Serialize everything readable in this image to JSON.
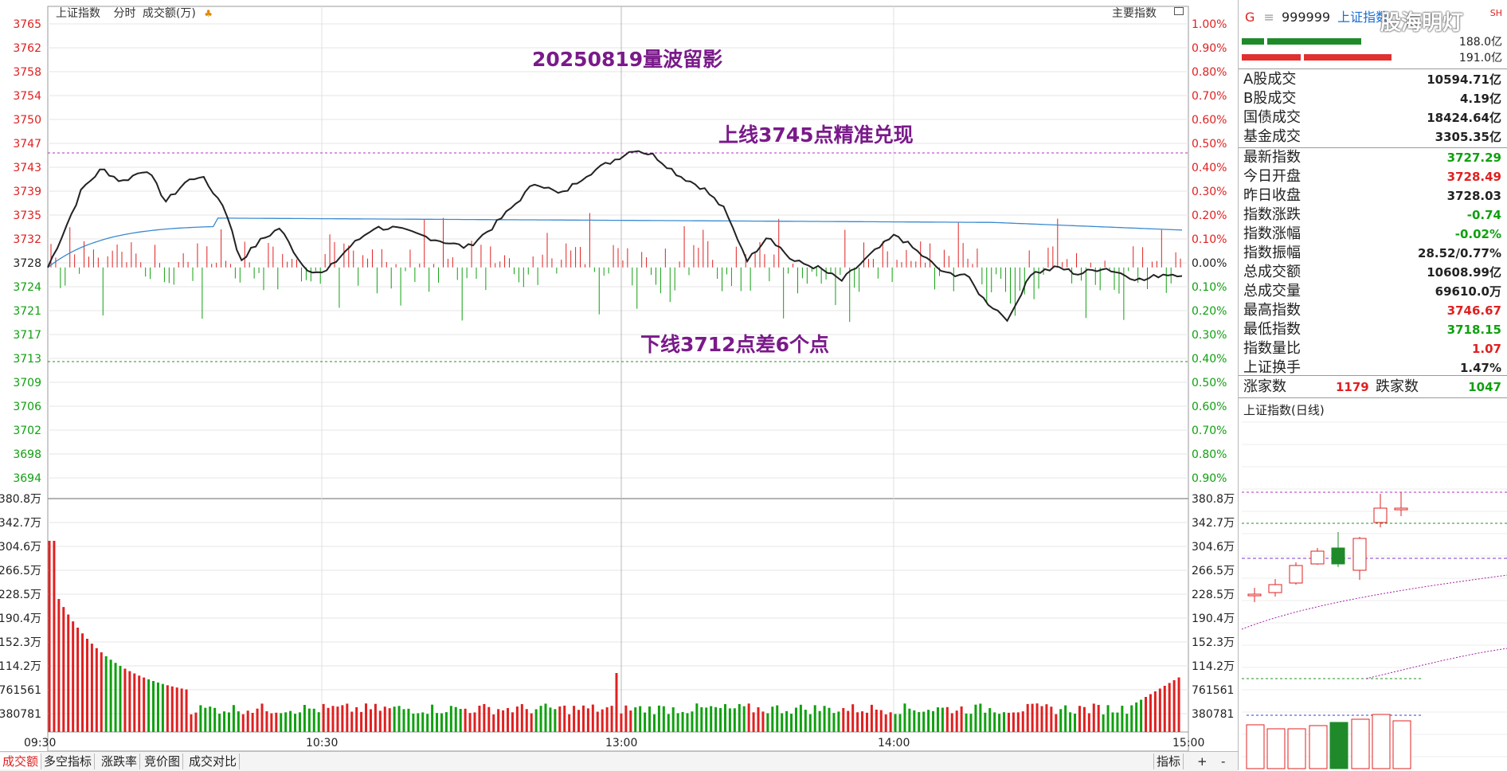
{
  "header": {
    "index_name": "上证指数",
    "mode": "分时",
    "volume_unit": "成交额(万)",
    "main_index_label": "主要指数"
  },
  "annotations": {
    "date_title": "20250819量波留影",
    "upper_line": "上线3745点精准兑现",
    "lower_line": "下线3712点差6个点"
  },
  "price_axis": [
    "3765",
    "3762",
    "3758",
    "3754",
    "3750",
    "3747",
    "3743",
    "3739",
    "3735",
    "3732",
    "3728",
    "3724",
    "3721",
    "3717",
    "3713",
    "3709",
    "3706",
    "3702",
    "3698",
    "3694"
  ],
  "pct_axis": [
    "1.00%",
    "0.90%",
    "0.80%",
    "0.70%",
    "0.60%",
    "0.50%",
    "0.40%",
    "0.30%",
    "0.20%",
    "0.10%",
    "0.00%",
    "0.10%",
    "0.20%",
    "0.30%",
    "0.40%",
    "0.50%",
    "0.60%",
    "0.70%",
    "0.80%",
    "0.90%"
  ],
  "volume_axis": [
    "380.8万",
    "342.7万",
    "304.6万",
    "266.5万",
    "228.5万",
    "190.4万",
    "152.3万",
    "114.2万",
    "761561",
    "380781"
  ],
  "time_axis": [
    "09:30",
    "10:30",
    "13:00",
    "14:00",
    "15:00"
  ],
  "bottom_tabs": [
    "成交额",
    "多空指标",
    "涨跌率",
    "竞价图",
    "成交对比"
  ],
  "bottom_right": [
    "指标",
    "+",
    "-"
  ],
  "sidebar": {
    "code_prefix": "G",
    "code": "999999",
    "name": "上证指数",
    "flag": "SH",
    "bar_top_value": "188.0亿",
    "bar_bottom_value": "191.0亿",
    "watermark": "股海明灯",
    "rows1": [
      {
        "label": "A股成交",
        "value": "10594.71亿",
        "color": "#222222"
      },
      {
        "label": "B股成交",
        "value": "4.19亿",
        "color": "#222222"
      },
      {
        "label": "国债成交",
        "value": "18424.64亿",
        "color": "#222222"
      },
      {
        "label": "基金成交",
        "value": "3305.35亿",
        "color": "#222222"
      }
    ],
    "rows2": [
      {
        "label": "最新指数",
        "value": "3727.29",
        "color": "#10a010"
      },
      {
        "label": "今日开盘",
        "value": "3728.49",
        "color": "#e02020"
      },
      {
        "label": "昨日收盘",
        "value": "3728.03",
        "color": "#222222"
      },
      {
        "label": "指数涨跌",
        "value": "-0.74",
        "color": "#10a010"
      },
      {
        "label": "指数涨幅",
        "value": "-0.02%",
        "color": "#10a010"
      },
      {
        "label": "指数振幅",
        "value": "28.52/0.77%",
        "color": "#222222"
      },
      {
        "label": "总成交额",
        "value": "10608.99亿",
        "color": "#222222"
      },
      {
        "label": "总成交量",
        "value": "69610.0万",
        "color": "#222222"
      },
      {
        "label": "最高指数",
        "value": "3746.67",
        "color": "#e02020"
      },
      {
        "label": "最低指数",
        "value": "3718.15",
        "color": "#10a010"
      },
      {
        "label": "指数量比",
        "value": "1.07",
        "color": "#e02020"
      },
      {
        "label": "上证换手",
        "value": "1.47%",
        "color": "#222222"
      }
    ],
    "up_label": "涨家数",
    "up_value": "1179",
    "down_label": "跌家数",
    "down_value": "1047",
    "daily_title": "上证指数(日线)"
  },
  "colors": {
    "up": "#e02020",
    "down": "#10a010",
    "avg": "#3a8ad0",
    "price": "#222222",
    "annot": "#7a1a8a"
  }
}
